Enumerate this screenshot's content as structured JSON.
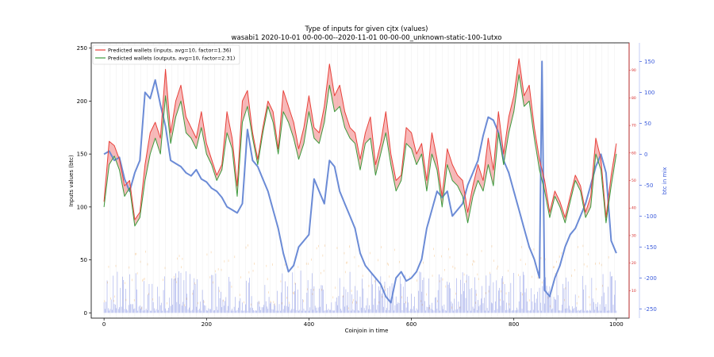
{
  "chart_data": {
    "type": "line",
    "title": "Type of inputs for given cjtx (values)",
    "subtitle": "wasabi1 2020-10-01 00-00-00--2020-11-01 00-00-00_unknown-static-100-1utxo",
    "xlabel": "Coinjoin in time",
    "ylabel_left": "Inputs values (btc)",
    "ylabel_right": "btc in mix",
    "xlim": [
      -25,
      1025
    ],
    "ylim_left": [
      -5,
      255
    ],
    "ylim_right_red": [
      0,
      100
    ],
    "ylim_right_blue": [
      -265,
      180
    ],
    "x_ticks": [
      0,
      200,
      400,
      600,
      800,
      1000
    ],
    "y_ticks_left": [
      0,
      50,
      100,
      150,
      200,
      250
    ],
    "y_ticks_right_red": [
      10,
      20,
      30,
      40,
      50,
      60,
      70,
      80,
      90
    ],
    "y_ticks_right_blue": [
      -250,
      -200,
      -150,
      -100,
      -50,
      0,
      50,
      100,
      150
    ],
    "legend_position": "top-left",
    "series": [
      {
        "name": "Predicted wallets (inputs, avg=10, factor=1.36)",
        "color": "#e8413a",
        "x": [
          0,
          10,
          20,
          30,
          40,
          50,
          60,
          70,
          80,
          90,
          100,
          110,
          120,
          130,
          140,
          150,
          160,
          170,
          180,
          190,
          200,
          210,
          220,
          230,
          240,
          250,
          260,
          270,
          280,
          290,
          300,
          310,
          320,
          330,
          340,
          350,
          360,
          370,
          380,
          390,
          400,
          410,
          420,
          430,
          440,
          450,
          460,
          470,
          480,
          490,
          500,
          510,
          520,
          530,
          540,
          550,
          560,
          570,
          580,
          590,
          600,
          610,
          620,
          630,
          640,
          650,
          660,
          670,
          680,
          690,
          700,
          710,
          720,
          730,
          740,
          750,
          760,
          770,
          780,
          790,
          800,
          810,
          820,
          830,
          840,
          850,
          860,
          870,
          880,
          890,
          900,
          910,
          920,
          930,
          940,
          950,
          960,
          970,
          980,
          990,
          1000
        ],
        "values": [
          105,
          162,
          158,
          145,
          120,
          125,
          88,
          95,
          140,
          170,
          180,
          165,
          230,
          170,
          200,
          215,
          185,
          175,
          165,
          190,
          160,
          145,
          130,
          140,
          190,
          165,
          120,
          200,
          210,
          170,
          145,
          175,
          200,
          190,
          155,
          210,
          195,
          180,
          155,
          175,
          205,
          175,
          170,
          195,
          235,
          205,
          215,
          190,
          175,
          170,
          145,
          170,
          185,
          140,
          160,
          190,
          150,
          125,
          130,
          175,
          170,
          150,
          160,
          125,
          170,
          145,
          110,
          155,
          140,
          130,
          125,
          95,
          120,
          140,
          125,
          165,
          135,
          190,
          150,
          185,
          205,
          240,
          205,
          215,
          175,
          145,
          125,
          95,
          115,
          105,
          90,
          110,
          130,
          120,
          95,
          110,
          165,
          145,
          90,
          130,
          160
        ]
      },
      {
        "name": "Predicted wallets (outputs, avg=10, factor=2.31)",
        "color": "#3d9a3d",
        "x": [
          0,
          10,
          20,
          30,
          40,
          50,
          60,
          70,
          80,
          90,
          100,
          110,
          120,
          130,
          140,
          150,
          160,
          170,
          180,
          190,
          200,
          210,
          220,
          230,
          240,
          250,
          260,
          270,
          280,
          290,
          300,
          310,
          320,
          330,
          340,
          350,
          360,
          370,
          380,
          390,
          400,
          410,
          420,
          430,
          440,
          450,
          460,
          470,
          480,
          490,
          500,
          510,
          520,
          530,
          540,
          550,
          560,
          570,
          580,
          590,
          600,
          610,
          620,
          630,
          640,
          650,
          660,
          670,
          680,
          690,
          700,
          710,
          720,
          730,
          740,
          750,
          760,
          770,
          780,
          790,
          800,
          810,
          820,
          830,
          840,
          850,
          860,
          870,
          880,
          890,
          900,
          910,
          920,
          930,
          940,
          950,
          960,
          970,
          980,
          990,
          1000
        ],
        "values": [
          100,
          140,
          148,
          135,
          110,
          118,
          82,
          90,
          125,
          150,
          165,
          150,
          205,
          160,
          185,
          200,
          170,
          165,
          155,
          175,
          150,
          140,
          125,
          135,
          170,
          155,
          110,
          180,
          195,
          165,
          140,
          170,
          195,
          180,
          150,
          190,
          180,
          165,
          145,
          160,
          190,
          165,
          160,
          180,
          215,
          190,
          195,
          175,
          165,
          160,
          135,
          160,
          165,
          130,
          150,
          170,
          140,
          115,
          125,
          160,
          155,
          140,
          150,
          115,
          150,
          135,
          100,
          140,
          125,
          120,
          110,
          85,
          110,
          125,
          115,
          140,
          120,
          170,
          140,
          170,
          190,
          225,
          195,
          200,
          165,
          135,
          115,
          90,
          110,
          100,
          85,
          105,
          125,
          115,
          90,
          100,
          150,
          135,
          85,
          120,
          150
        ]
      },
      {
        "name": "btc in mix",
        "color": "#6b8bd6",
        "x": [
          0,
          10,
          20,
          30,
          40,
          50,
          60,
          70,
          80,
          90,
          100,
          110,
          120,
          130,
          140,
          150,
          160,
          170,
          180,
          190,
          200,
          210,
          220,
          230,
          240,
          250,
          260,
          270,
          280,
          290,
          300,
          310,
          320,
          330,
          340,
          350,
          360,
          370,
          380,
          390,
          400,
          410,
          420,
          430,
          440,
          450,
          460,
          470,
          480,
          490,
          500,
          510,
          520,
          530,
          540,
          550,
          560,
          570,
          580,
          590,
          600,
          610,
          620,
          630,
          640,
          650,
          660,
          670,
          680,
          690,
          700,
          710,
          720,
          730,
          740,
          750,
          760,
          770,
          780,
          790,
          800,
          810,
          820,
          830,
          840,
          850,
          855,
          860,
          870,
          880,
          890,
          900,
          910,
          920,
          930,
          940,
          950,
          960,
          970,
          980,
          990,
          1000
        ],
        "values": [
          0,
          5,
          -10,
          -5,
          -40,
          -60,
          -30,
          -10,
          100,
          90,
          120,
          80,
          45,
          -10,
          -15,
          -20,
          -30,
          -35,
          -25,
          -40,
          -45,
          -55,
          -60,
          -70,
          -85,
          -90,
          -95,
          -80,
          40,
          -10,
          -20,
          -40,
          -60,
          -90,
          -120,
          -160,
          -190,
          -180,
          -150,
          -140,
          -130,
          -40,
          -60,
          -80,
          -10,
          -20,
          -60,
          -80,
          -100,
          -120,
          -160,
          -180,
          -190,
          -200,
          -210,
          -230,
          -240,
          -200,
          -190,
          -205,
          -200,
          -190,
          -170,
          -120,
          -90,
          -60,
          -70,
          -60,
          -100,
          -90,
          -80,
          -50,
          -30,
          -10,
          30,
          60,
          55,
          35,
          -10,
          -30,
          -60,
          -90,
          -120,
          -150,
          -170,
          -200,
          150,
          -220,
          -230,
          -200,
          -180,
          -150,
          -130,
          -120,
          -100,
          -80,
          -50,
          -20,
          0,
          -30,
          -140,
          -160
        ]
      }
    ],
    "bars_note": "dense bars near baseline"
  }
}
